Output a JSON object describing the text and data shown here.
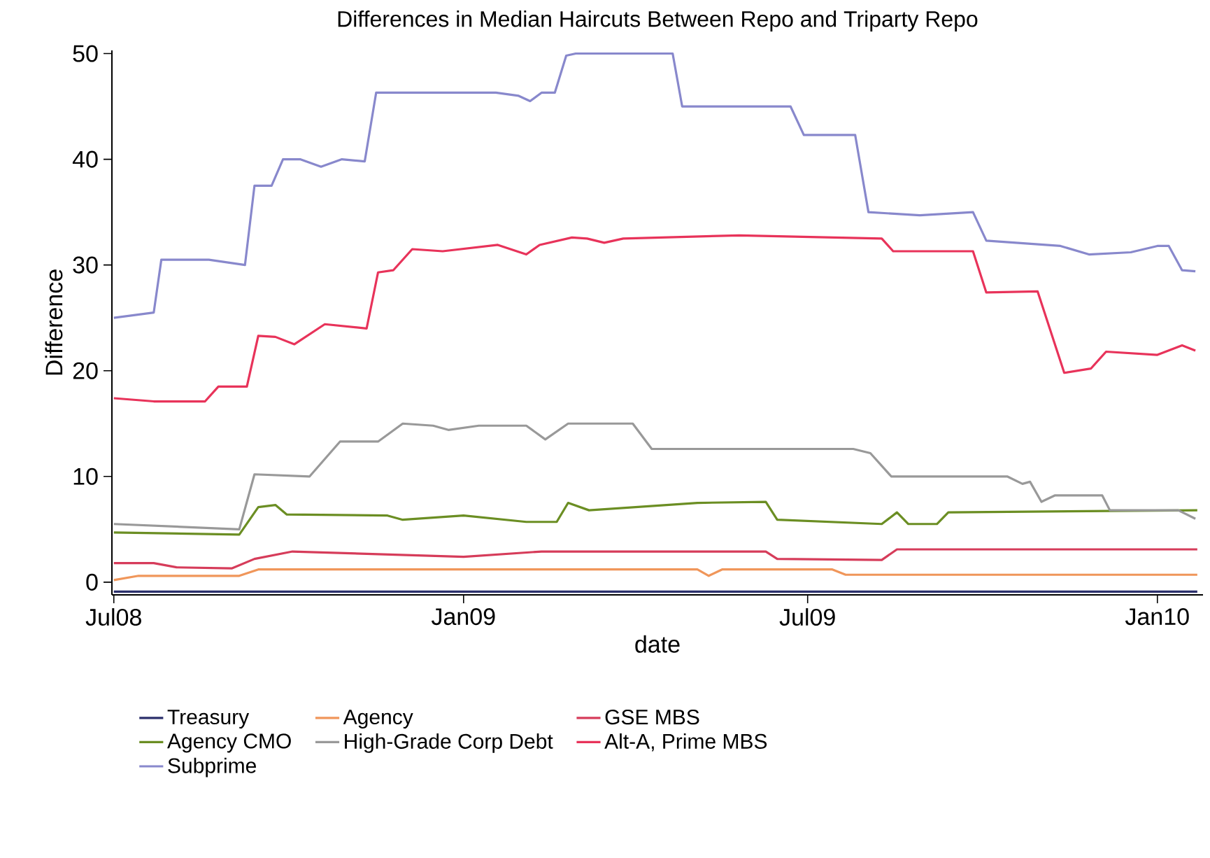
{
  "chart_data": {
    "type": "line",
    "title": "Differences in Median Haircuts Between Repo and Triparty Repo",
    "xlabel": "date",
    "ylabel": "Difference",
    "xlim": [
      "2008-06-30",
      "2010-01-25"
    ],
    "ylim": [
      -1.2,
      50.3
    ],
    "xticks": [
      {
        "value": "2008-07-01",
        "label": "Jul08"
      },
      {
        "value": "2009-01-01",
        "label": "Jan09"
      },
      {
        "value": "2009-07-01",
        "label": "Jul09"
      },
      {
        "value": "2010-01-01",
        "label": "Jan10"
      }
    ],
    "yticks": [
      0,
      10,
      20,
      30,
      40,
      50
    ],
    "legend": "bottom",
    "series": [
      {
        "name": "Treasury",
        "color": "#2b2f6b",
        "x": [
          "2008-07-01",
          "2010-01-22"
        ],
        "values": [
          -0.9,
          -0.9
        ]
      },
      {
        "name": "Agency",
        "color": "#f0965a",
        "x": [
          "2008-07-01",
          "2008-07-14",
          "2008-09-05",
          "2008-09-15",
          "2009-05-04",
          "2009-05-10",
          "2009-05-17",
          "2009-07-14",
          "2009-07-21",
          "2010-01-22"
        ],
        "values": [
          0.2,
          0.6,
          0.6,
          1.2,
          1.2,
          0.6,
          1.2,
          1.2,
          0.7,
          0.7
        ]
      },
      {
        "name": "GSE MBS",
        "color": "#d63c5a",
        "x": [
          "2008-07-01",
          "2008-07-22",
          "2008-08-03",
          "2008-09-01",
          "2008-09-13",
          "2008-10-03",
          "2009-01-01",
          "2009-02-11",
          "2009-06-09",
          "2009-06-15",
          "2009-08-09",
          "2009-08-17",
          "2010-01-22"
        ],
        "values": [
          1.8,
          1.8,
          1.4,
          1.3,
          2.2,
          2.9,
          2.4,
          2.9,
          2.9,
          2.2,
          2.1,
          3.1,
          3.1
        ]
      },
      {
        "name": "Agency CMO",
        "color": "#6b8e23",
        "x": [
          "2008-07-01",
          "2008-09-05",
          "2008-09-15",
          "2008-09-24",
          "2008-09-30",
          "2008-11-22",
          "2008-11-30",
          "2009-01-01",
          "2009-02-03",
          "2009-02-19",
          "2009-02-25",
          "2009-03-08",
          "2009-05-04",
          "2009-06-09",
          "2009-06-15",
          "2009-08-09",
          "2009-08-17",
          "2009-08-23",
          "2009-09-07",
          "2009-09-13",
          "2010-01-22"
        ],
        "values": [
          4.7,
          4.5,
          7.1,
          7.3,
          6.4,
          6.3,
          5.9,
          6.3,
          5.7,
          5.7,
          7.5,
          6.8,
          7.5,
          7.6,
          5.9,
          5.5,
          6.6,
          5.5,
          5.5,
          6.6,
          6.8
        ]
      },
      {
        "name": "High-Grade Corp Debt",
        "color": "#999999",
        "x": [
          "2008-07-01",
          "2008-09-05",
          "2008-09-13",
          "2008-10-12",
          "2008-10-28",
          "2008-11-17",
          "2008-11-30",
          "2008-12-16",
          "2008-12-24",
          "2009-01-09",
          "2009-02-03",
          "2009-02-13",
          "2009-02-25",
          "2009-03-31",
          "2009-04-10",
          "2009-07-25",
          "2009-08-03",
          "2009-08-14",
          "2009-10-14",
          "2009-10-22",
          "2009-10-26",
          "2009-11-01",
          "2009-11-08",
          "2009-12-03",
          "2009-12-07",
          "2010-01-12",
          "2010-01-21"
        ],
        "values": [
          5.5,
          5.0,
          10.2,
          10,
          13.3,
          13.3,
          15,
          14.8,
          14.4,
          14.8,
          14.8,
          13.5,
          15,
          15,
          12.6,
          12.6,
          12.2,
          10,
          10,
          9.3,
          9.5,
          7.6,
          8.2,
          8.2,
          6.8,
          6.8,
          6.0
        ]
      },
      {
        "name": "Alt-A, Prime MBS",
        "color": "#e8335a",
        "x": [
          "2008-07-01",
          "2008-07-22",
          "2008-08-18",
          "2008-08-25",
          "2008-09-09",
          "2008-09-15",
          "2008-09-24",
          "2008-10-04",
          "2008-10-20",
          "2008-11-11",
          "2008-11-17",
          "2008-11-25",
          "2008-12-05",
          "2008-12-21",
          "2009-01-19",
          "2009-02-03",
          "2009-02-10",
          "2009-02-27",
          "2009-03-07",
          "2009-03-16",
          "2009-03-26",
          "2009-05-26",
          "2009-08-09",
          "2009-08-15",
          "2009-09-26",
          "2009-10-03",
          "2009-10-30",
          "2009-11-13",
          "2009-11-27",
          "2009-12-05",
          "2010-01-01",
          "2010-01-14",
          "2010-01-21"
        ],
        "values": [
          17.4,
          17.1,
          17.1,
          18.5,
          18.5,
          23.3,
          23.2,
          22.5,
          24.4,
          24,
          29.3,
          29.5,
          31.5,
          31.3,
          31.9,
          31.0,
          31.9,
          32.6,
          32.5,
          32.1,
          32.5,
          32.8,
          32.5,
          31.3,
          31.3,
          27.4,
          27.5,
          19.8,
          20.2,
          21.8,
          21.5,
          22.4,
          21.9
        ]
      },
      {
        "name": "Subprime",
        "color": "#8888cc",
        "x": [
          "2008-07-01",
          "2008-07-22",
          "2008-07-26",
          "2008-08-20",
          "2008-09-08",
          "2008-09-13",
          "2008-09-22",
          "2008-09-28",
          "2008-10-07",
          "2008-10-18",
          "2008-10-29",
          "2008-11-10",
          "2008-11-16",
          "2008-12-08",
          "2009-01-18",
          "2009-01-30",
          "2009-02-05",
          "2009-02-11",
          "2009-02-18",
          "2009-02-24",
          "2009-03-01",
          "2009-04-21",
          "2009-04-26",
          "2009-06-22",
          "2009-06-29",
          "2009-07-26",
          "2009-08-02",
          "2009-08-29",
          "2009-09-26",
          "2009-10-03",
          "2009-11-11",
          "2009-11-26",
          "2009-12-18",
          "2010-01-01",
          "2010-01-07",
          "2010-01-14",
          "2010-01-21"
        ],
        "values": [
          25,
          25.5,
          30.5,
          30.5,
          30,
          37.5,
          37.5,
          40,
          40,
          39.3,
          40,
          39.8,
          46.3,
          46.3,
          46.3,
          46,
          45.5,
          46.3,
          46.3,
          49.8,
          50,
          50,
          45,
          45,
          42.3,
          42.3,
          35,
          34.7,
          35,
          32.3,
          31.8,
          31,
          31.2,
          31.8,
          31.8,
          29.5,
          29.4
        ]
      }
    ]
  }
}
